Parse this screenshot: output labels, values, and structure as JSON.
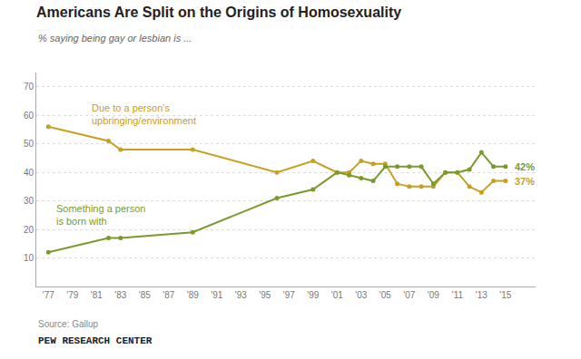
{
  "chart_data": {
    "type": "line",
    "title": "Americans Are Split on the Origins of Homosexuality",
    "subtitle": "% saying being gay or lesbian is ...",
    "annotations": [
      "Source: Gallup",
      "PEW RESEARCH CENTER"
    ],
    "x": [
      1977,
      1982,
      1983,
      1989,
      1996,
      1999,
      2001,
      2002,
      2003,
      2004,
      2005,
      2006,
      2007,
      2008,
      2009,
      2010,
      2011,
      2012,
      2013,
      2014,
      2015
    ],
    "series": [
      {
        "name": "Due to a person’s\nupbringing/environment",
        "color": "#C8A020",
        "values": [
          56,
          51,
          48,
          48,
          40,
          44,
          40,
          40,
          44,
          43,
          43,
          36,
          35,
          35,
          35,
          40,
          40,
          35,
          33,
          37,
          37
        ],
        "value_labels": [
          null,
          null,
          null,
          null,
          null,
          null,
          null,
          null,
          null,
          null,
          null,
          null,
          null,
          null,
          null,
          null,
          null,
          null,
          null,
          null,
          "37%"
        ]
      },
      {
        "name": "Something a person\nis born with",
        "color": "#7A9A2E",
        "values": [
          12,
          17,
          17,
          19,
          31,
          34,
          40,
          39,
          38,
          37,
          42,
          42,
          42,
          42,
          36,
          40,
          40,
          41,
          47,
          42,
          42
        ],
        "value_labels": [
          null,
          null,
          null,
          null,
          null,
          null,
          null,
          null,
          null,
          null,
          null,
          null,
          null,
          null,
          null,
          null,
          null,
          null,
          null,
          null,
          "42%"
        ]
      }
    ],
    "xlim": [
      1976,
      2017.5
    ],
    "xticks": [
      {
        "value": 1977,
        "label": "'77"
      },
      {
        "value": 1979,
        "label": "'79"
      },
      {
        "value": 1981,
        "label": "'81"
      },
      {
        "value": 1983,
        "label": "'83"
      },
      {
        "value": 1985,
        "label": "'85"
      },
      {
        "value": 1987,
        "label": "'87"
      },
      {
        "value": 1989,
        "label": "'89"
      },
      {
        "value": 1991,
        "label": "'91"
      },
      {
        "value": 1993,
        "label": "'93"
      },
      {
        "value": 1995,
        "label": "'95"
      },
      {
        "value": 1997,
        "label": "'97"
      },
      {
        "value": 1999,
        "label": "'99"
      },
      {
        "value": 2001,
        "label": "'01"
      },
      {
        "value": 2003,
        "label": "'03"
      },
      {
        "value": 2005,
        "label": "'05"
      },
      {
        "value": 2007,
        "label": "'07"
      },
      {
        "value": 2009,
        "label": "'09"
      },
      {
        "value": 2011,
        "label": "'11"
      },
      {
        "value": 2013,
        "label": "'13"
      },
      {
        "value": 2015,
        "label": "'15"
      }
    ],
    "ylim": [
      0,
      75
    ],
    "yticks": [
      10,
      20,
      30,
      40,
      50,
      60,
      70
    ],
    "grid": true,
    "marker": "circle"
  }
}
